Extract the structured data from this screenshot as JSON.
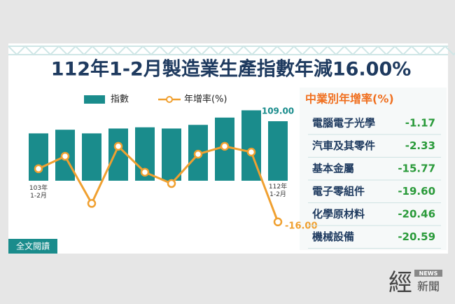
{
  "chart_data": {
    "type": "combo",
    "title": "112年1-2月製造業生產指數年減16.00%",
    "categories": [
      "103年\n1-2月",
      null,
      null,
      null,
      null,
      null,
      null,
      null,
      null,
      "112年\n1-2月"
    ],
    "series": [
      {
        "name": "指數",
        "type": "bar",
        "color": "#1a8c8c",
        "values": [
          99,
          102,
          99,
          103,
          104,
          103,
          106,
          112,
          118,
          109
        ],
        "value_labels": [
          null,
          null,
          null,
          null,
          null,
          null,
          null,
          null,
          null,
          "109.00"
        ]
      },
      {
        "name": "年增率(%)",
        "type": "line",
        "axis": "y2",
        "color": "#f0a030",
        "values": [
          7,
          12.4,
          -8,
          16.7,
          5.5,
          0.6,
          13.3,
          16.7,
          14.2,
          -16
        ],
        "value_labels": [
          null,
          null,
          null,
          null,
          null,
          null,
          null,
          null,
          null,
          "-16.00"
        ]
      }
    ],
    "ylim": [
      60,
      120
    ],
    "y2lim": [
      -20,
      20
    ]
  },
  "side_table": {
    "title": "中業別年增率(%)",
    "rows": [
      {
        "name": "電腦電子光學",
        "value": -1.17
      },
      {
        "name": "汽車及其零件",
        "value": -2.33
      },
      {
        "name": "基本金屬",
        "value": -15.77
      },
      {
        "name": "電子零組件",
        "value": -19.6,
        "label": "-19.60"
      },
      {
        "name": "化學原材料",
        "value": -20.46
      },
      {
        "name": "機械設備",
        "value": -20.59
      }
    ]
  },
  "button": "全文閱讀",
  "logo": {
    "main": "經",
    "badge": "NEWS",
    "sub": "新聞"
  }
}
